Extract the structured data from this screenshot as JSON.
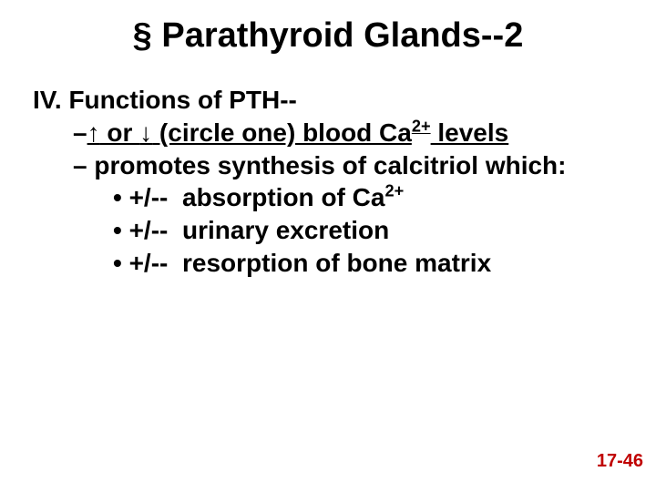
{
  "slide": {
    "title": "§ Parathyroid Glands--2",
    "heading": "IV. Functions of PTH--",
    "line1": {
      "dash": "–",
      "arrowUp": "↑",
      "or": " or ",
      "arrowDown": "↓",
      "rest1": " (circle one) blood Ca",
      "sup": "2+",
      "rest2": " levels"
    },
    "line2": {
      "dash": "–",
      "text1": " promotes synthesis of ",
      "bold": "calcitriol",
      "text2": " which:"
    },
    "bullets": [
      {
        "marker": "• +/--",
        "text": "absorption of Ca",
        "sup": "2+"
      },
      {
        "marker": "• +/--",
        "text": "urinary excretion",
        "sup": ""
      },
      {
        "marker": "• +/--",
        "text": "resorption of bone matrix",
        "sup": ""
      }
    ],
    "pageNumber": "17-46",
    "colors": {
      "text": "#000000",
      "background": "#ffffff",
      "pageNumber": "#c00000"
    },
    "fonts": {
      "title_pt": 38,
      "body_pt": 28,
      "pagenum_pt": 20
    }
  }
}
